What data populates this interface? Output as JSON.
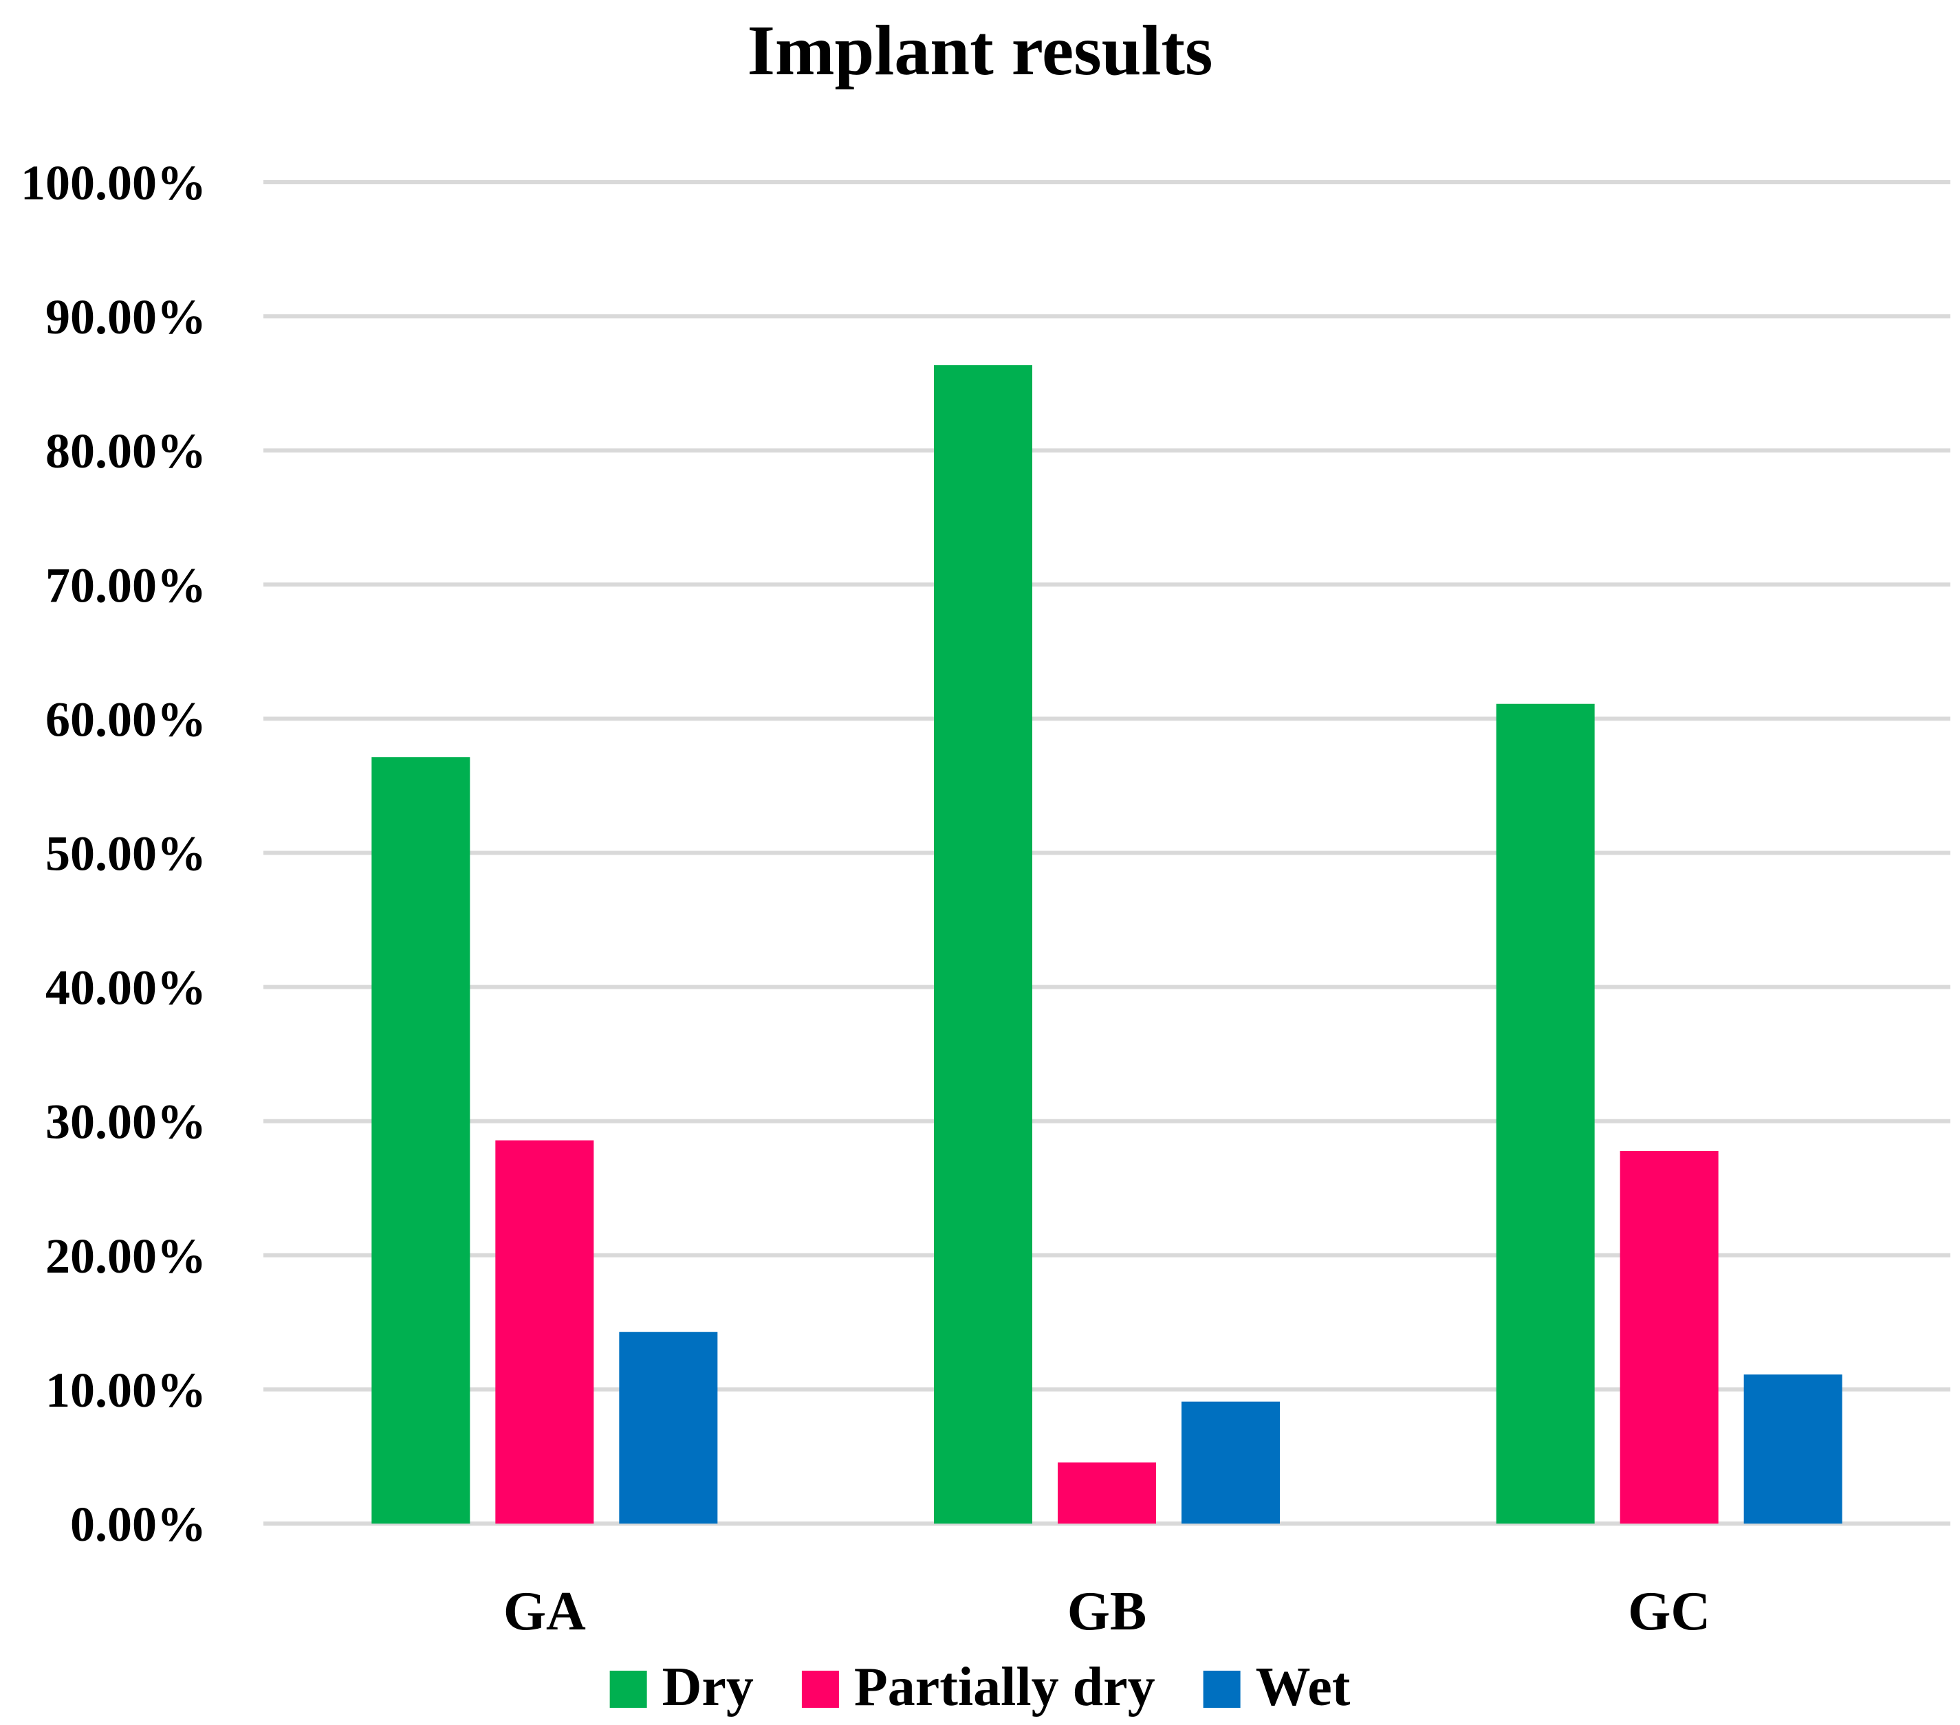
{
  "chart_data": {
    "type": "bar",
    "title": "Implant results",
    "xlabel": "",
    "ylabel": "",
    "categories": [
      "GA",
      "GB",
      "GC"
    ],
    "series": [
      {
        "name": "Dry",
        "color": "#00b050",
        "values": [
          0.5714,
          0.8636,
          0.6111
        ]
      },
      {
        "name": "Partially dry",
        "color": "#ff0066",
        "values": [
          0.2857,
          0.0455,
          0.2778
        ]
      },
      {
        "name": "Wet",
        "color": "#0070c0",
        "values": [
          0.1429,
          0.0909,
          0.1111
        ]
      }
    ],
    "ylim": [
      0,
      1
    ],
    "yticks": [
      0,
      0.1,
      0.2,
      0.3,
      0.4,
      0.5,
      0.6,
      0.7,
      0.8,
      0.9,
      1.0
    ],
    "ytick_labels": [
      "0.00%",
      "10.00%",
      "20.00%",
      "30.00%",
      "40.00%",
      "50.00%",
      "60.00%",
      "70.00%",
      "80.00%",
      "90.00%",
      "100.00%"
    ],
    "grid": true,
    "legend": "bottom-center"
  }
}
